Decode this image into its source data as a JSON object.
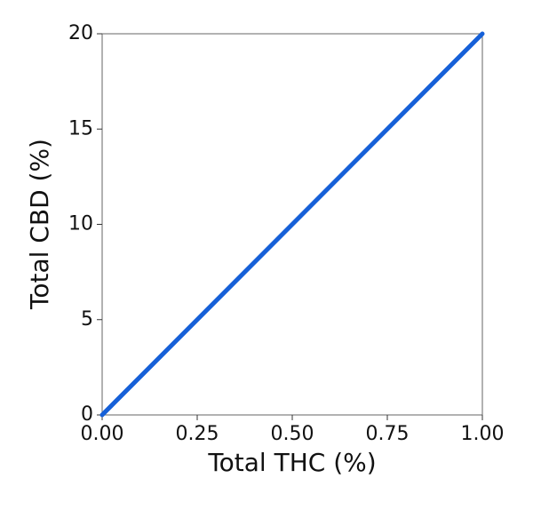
{
  "chart_data": {
    "type": "line",
    "xlabel": "Total THC (%)",
    "ylabel": "Total CBD (%)",
    "x": [
      0,
      1
    ],
    "series": [
      {
        "name": "Total CBD",
        "color": "#1660d8",
        "values": [
          0,
          20
        ]
      }
    ],
    "xlim": [
      0,
      1
    ],
    "xticks": [
      {
        "value": 0,
        "label": "0.00"
      },
      {
        "value": 0.25,
        "label": "0.25"
      },
      {
        "value": 0.5,
        "label": "0.50"
      },
      {
        "value": 0.75,
        "label": "0.75"
      },
      {
        "value": 1,
        "label": "1.00"
      }
    ],
    "ylim": [
      0,
      20
    ],
    "yticks": [
      0,
      5,
      10,
      15,
      20
    ],
    "grid": false
  }
}
